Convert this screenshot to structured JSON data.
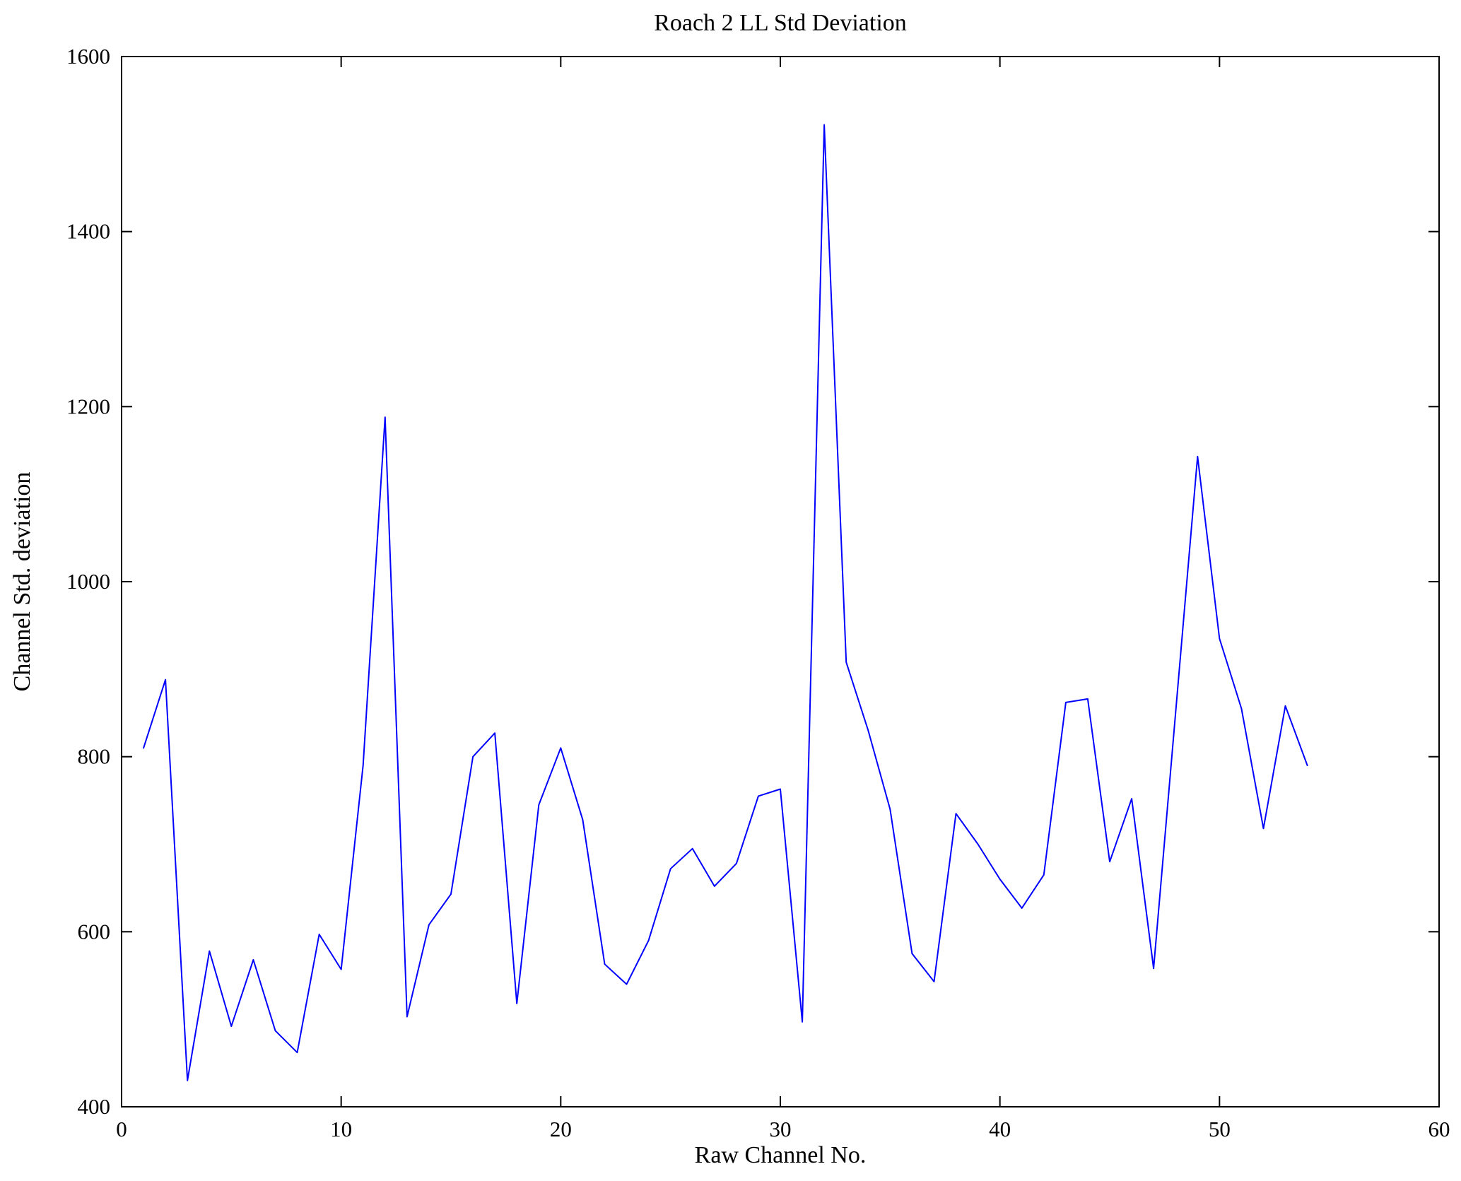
{
  "chart_data": {
    "type": "line",
    "title": "Roach 2 LL Std Deviation",
    "xlabel": "Raw Channel No.",
    "ylabel": "Channel Std. deviation",
    "xlim": [
      0,
      60
    ],
    "ylim": [
      400,
      1600
    ],
    "xticks": [
      0,
      10,
      20,
      30,
      40,
      50,
      60
    ],
    "yticks": [
      400,
      600,
      800,
      1000,
      1200,
      1400,
      1600
    ],
    "grid": false,
    "legend": "none",
    "line_color": "#0000ff",
    "axis_color": "#000000",
    "x": [
      1,
      2,
      3,
      4,
      5,
      6,
      7,
      8,
      9,
      10,
      11,
      12,
      13,
      14,
      15,
      16,
      17,
      18,
      19,
      20,
      21,
      22,
      23,
      24,
      25,
      26,
      27,
      28,
      29,
      30,
      31,
      32,
      33,
      34,
      35,
      36,
      37,
      38,
      39,
      40,
      41,
      42,
      43,
      44,
      45,
      46,
      47,
      48,
      49,
      50,
      51,
      52,
      53,
      54
    ],
    "values": [
      810,
      888,
      430,
      578,
      492,
      568,
      487,
      462,
      597,
      557,
      790,
      1188,
      503,
      608,
      643,
      800,
      827,
      518,
      745,
      810,
      728,
      563,
      540,
      590,
      672,
      695,
      652,
      678,
      755,
      763,
      497,
      1522,
      908,
      830,
      740,
      575,
      543,
      735,
      700,
      660,
      627,
      665,
      862,
      866,
      680,
      752,
      558,
      850,
      1143,
      935,
      855,
      718,
      858,
      790
    ]
  }
}
